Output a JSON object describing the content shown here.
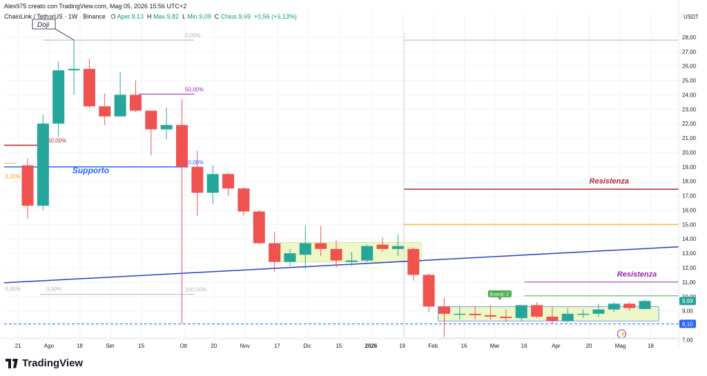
{
  "header": {
    "author_line": "Alex975 creato con TradingView.com, Mag 05, 2026 15:56 UTC+2",
    "symbol": "ChainLink / TetherUS · 1W · Binance",
    "o_label": "O",
    "o_text": "Aper.9,13",
    "h_label": "H",
    "h_text": "Max.9,82",
    "l_label": "L",
    "l_text": "Min.9,09",
    "c_label": "C",
    "c_text": "Chius.9,69",
    "chg_text": "+0,56 (+6,13%)"
  },
  "brand": {
    "logo_text": "TradingView"
  },
  "colors": {
    "up": "#26a69a",
    "down": "#ef5350",
    "support": "#2962ff",
    "resistance_red": "#b22833",
    "resistance_purple": "#9c27b0",
    "orange": "#f5b041",
    "range_fill": "#eef7c8",
    "last_price": "#26a69a",
    "dashed": "#2962ff"
  },
  "chart_data": {
    "type": "candlestick",
    "currency": "USDT",
    "ylim": [
      6.3,
      29.2
    ],
    "y_ticks": [
      "28,00",
      "27,00",
      "26,00",
      "25,00",
      "24,00",
      "23,00",
      "22,00",
      "21,00",
      "20,00",
      "19,00",
      "18,00",
      "17,00",
      "16,00",
      "15,00",
      "14,00",
      "13,00",
      "12,00",
      "11,00",
      "10,00",
      "9,00",
      "7,00"
    ],
    "y_tick_values": [
      28,
      27,
      26,
      25,
      24,
      23,
      22,
      21,
      20,
      19,
      18,
      17,
      16,
      15,
      14,
      13,
      12,
      11,
      10,
      9,
      7
    ],
    "x_labels": [
      "21",
      "Ago",
      "18",
      "Set",
      "15",
      "Ott",
      "20",
      "Nov",
      "17",
      "Dic",
      "15",
      "2026",
      "19",
      "Feb",
      "16",
      "Mar",
      "16",
      "Apr",
      "20",
      "Mag",
      "18"
    ],
    "x_label_index": [
      -0.6,
      1.4,
      3.4,
      5.4,
      7.4,
      10.2,
      12.1,
      14.1,
      16.2,
      18.2,
      20.2,
      22.3,
      24.3,
      26.3,
      28.3,
      30.3,
      32.2,
      34.3,
      36.4,
      38.4,
      40.4
    ],
    "candles": [
      {
        "o": 19.1,
        "h": 19.6,
        "l": 15.4,
        "c": 16.3
      },
      {
        "o": 16.3,
        "h": 22.6,
        "l": 16.0,
        "c": 22.0
      },
      {
        "o": 22.0,
        "h": 26.3,
        "l": 21.1,
        "c": 25.7
      },
      {
        "o": 25.7,
        "h": 27.8,
        "l": 24.0,
        "c": 25.8
      },
      {
        "o": 25.8,
        "h": 26.5,
        "l": 23.1,
        "c": 23.2
      },
      {
        "o": 23.2,
        "h": 24.1,
        "l": 21.9,
        "c": 22.5
      },
      {
        "o": 22.5,
        "h": 25.6,
        "l": 22.5,
        "c": 24.0
      },
      {
        "o": 24.0,
        "h": 25.0,
        "l": 22.8,
        "c": 22.9
      },
      {
        "o": 22.9,
        "h": 22.9,
        "l": 19.8,
        "c": 21.6
      },
      {
        "o": 21.6,
        "h": 23.1,
        "l": 20.9,
        "c": 21.9
      },
      {
        "o": 21.9,
        "h": 23.7,
        "l": 8.1,
        "c": 19.0
      },
      {
        "o": 19.0,
        "h": 20.1,
        "l": 15.6,
        "c": 17.2
      },
      {
        "o": 17.2,
        "h": 19.1,
        "l": 16.4,
        "c": 18.5
      },
      {
        "o": 18.5,
        "h": 18.6,
        "l": 17.0,
        "c": 17.5
      },
      {
        "o": 17.5,
        "h": 17.6,
        "l": 15.6,
        "c": 15.9
      },
      {
        "o": 15.9,
        "h": 16.0,
        "l": 13.6,
        "c": 13.7
      },
      {
        "o": 13.7,
        "h": 14.5,
        "l": 11.7,
        "c": 12.4
      },
      {
        "o": 12.4,
        "h": 13.3,
        "l": 12.1,
        "c": 13.0
      },
      {
        "o": 12.9,
        "h": 14.9,
        "l": 11.9,
        "c": 13.7
      },
      {
        "o": 13.7,
        "h": 14.9,
        "l": 12.8,
        "c": 13.3
      },
      {
        "o": 13.3,
        "h": 13.9,
        "l": 12.0,
        "c": 12.5
      },
      {
        "o": 12.4,
        "h": 13.1,
        "l": 12.1,
        "c": 12.5
      },
      {
        "o": 12.5,
        "h": 13.6,
        "l": 12.4,
        "c": 13.5
      },
      {
        "o": 13.6,
        "h": 14.1,
        "l": 13.1,
        "c": 13.3
      },
      {
        "o": 13.3,
        "h": 14.3,
        "l": 12.8,
        "c": 13.5
      },
      {
        "o": 13.3,
        "h": 13.4,
        "l": 11.1,
        "c": 11.5
      },
      {
        "o": 11.5,
        "h": 11.6,
        "l": 8.9,
        "c": 9.3
      },
      {
        "o": 9.3,
        "h": 9.9,
        "l": 7.2,
        "c": 8.8
      },
      {
        "o": 8.8,
        "h": 9.3,
        "l": 8.4,
        "c": 8.8
      },
      {
        "o": 8.8,
        "h": 9.3,
        "l": 8.4,
        "c": 8.7
      },
      {
        "o": 8.7,
        "h": 9.4,
        "l": 8.4,
        "c": 8.6
      },
      {
        "o": 8.6,
        "h": 9.1,
        "l": 8.2,
        "c": 8.5
      },
      {
        "o": 8.5,
        "h": 9.4,
        "l": 8.3,
        "c": 9.4
      },
      {
        "o": 9.4,
        "h": 9.6,
        "l": 8.5,
        "c": 8.6
      },
      {
        "o": 8.6,
        "h": 9.3,
        "l": 8.1,
        "c": 8.3
      },
      {
        "o": 8.3,
        "h": 9.2,
        "l": 8.2,
        "c": 8.8
      },
      {
        "o": 8.8,
        "h": 9.1,
        "l": 8.5,
        "c": 8.8
      },
      {
        "o": 8.8,
        "h": 9.5,
        "l": 8.6,
        "c": 9.1
      },
      {
        "o": 9.1,
        "h": 9.6,
        "l": 8.9,
        "c": 9.5
      },
      {
        "o": 9.5,
        "h": 9.6,
        "l": 9.0,
        "c": 9.2
      },
      {
        "o": 9.13,
        "h": 9.82,
        "l": 9.09,
        "c": 9.69
      }
    ],
    "last_price": 9.69,
    "last_price_label": "9,69",
    "dashed_level": 8.1,
    "dashed_label": "8,10",
    "supporto_level": 19.0,
    "supporto_label": "Supporto",
    "resistenza_1": 17.45,
    "resistenza_1_label": "Resistenza",
    "resistenza_2": 11.0,
    "resistenza_2_label": "Resistenza",
    "orange_level": 15.0,
    "green_level": 10.05,
    "fib_labels": {
      "top_a": "0,00%",
      "mid_a": "50,00%",
      "bot_a": "100,00%",
      "red_mid": "50,00%",
      "left_cut": "3,20%",
      "b_top": "0,00%",
      "b_mid": "50,00%",
      "b_bot": "0,00%"
    },
    "annotation_doji": "Doji",
    "annotation_eventi": "Eventi: 2",
    "trend_from": [
      -0.5,
      10.95
    ],
    "trend_to": [
      42.5,
      13.45
    ]
  }
}
